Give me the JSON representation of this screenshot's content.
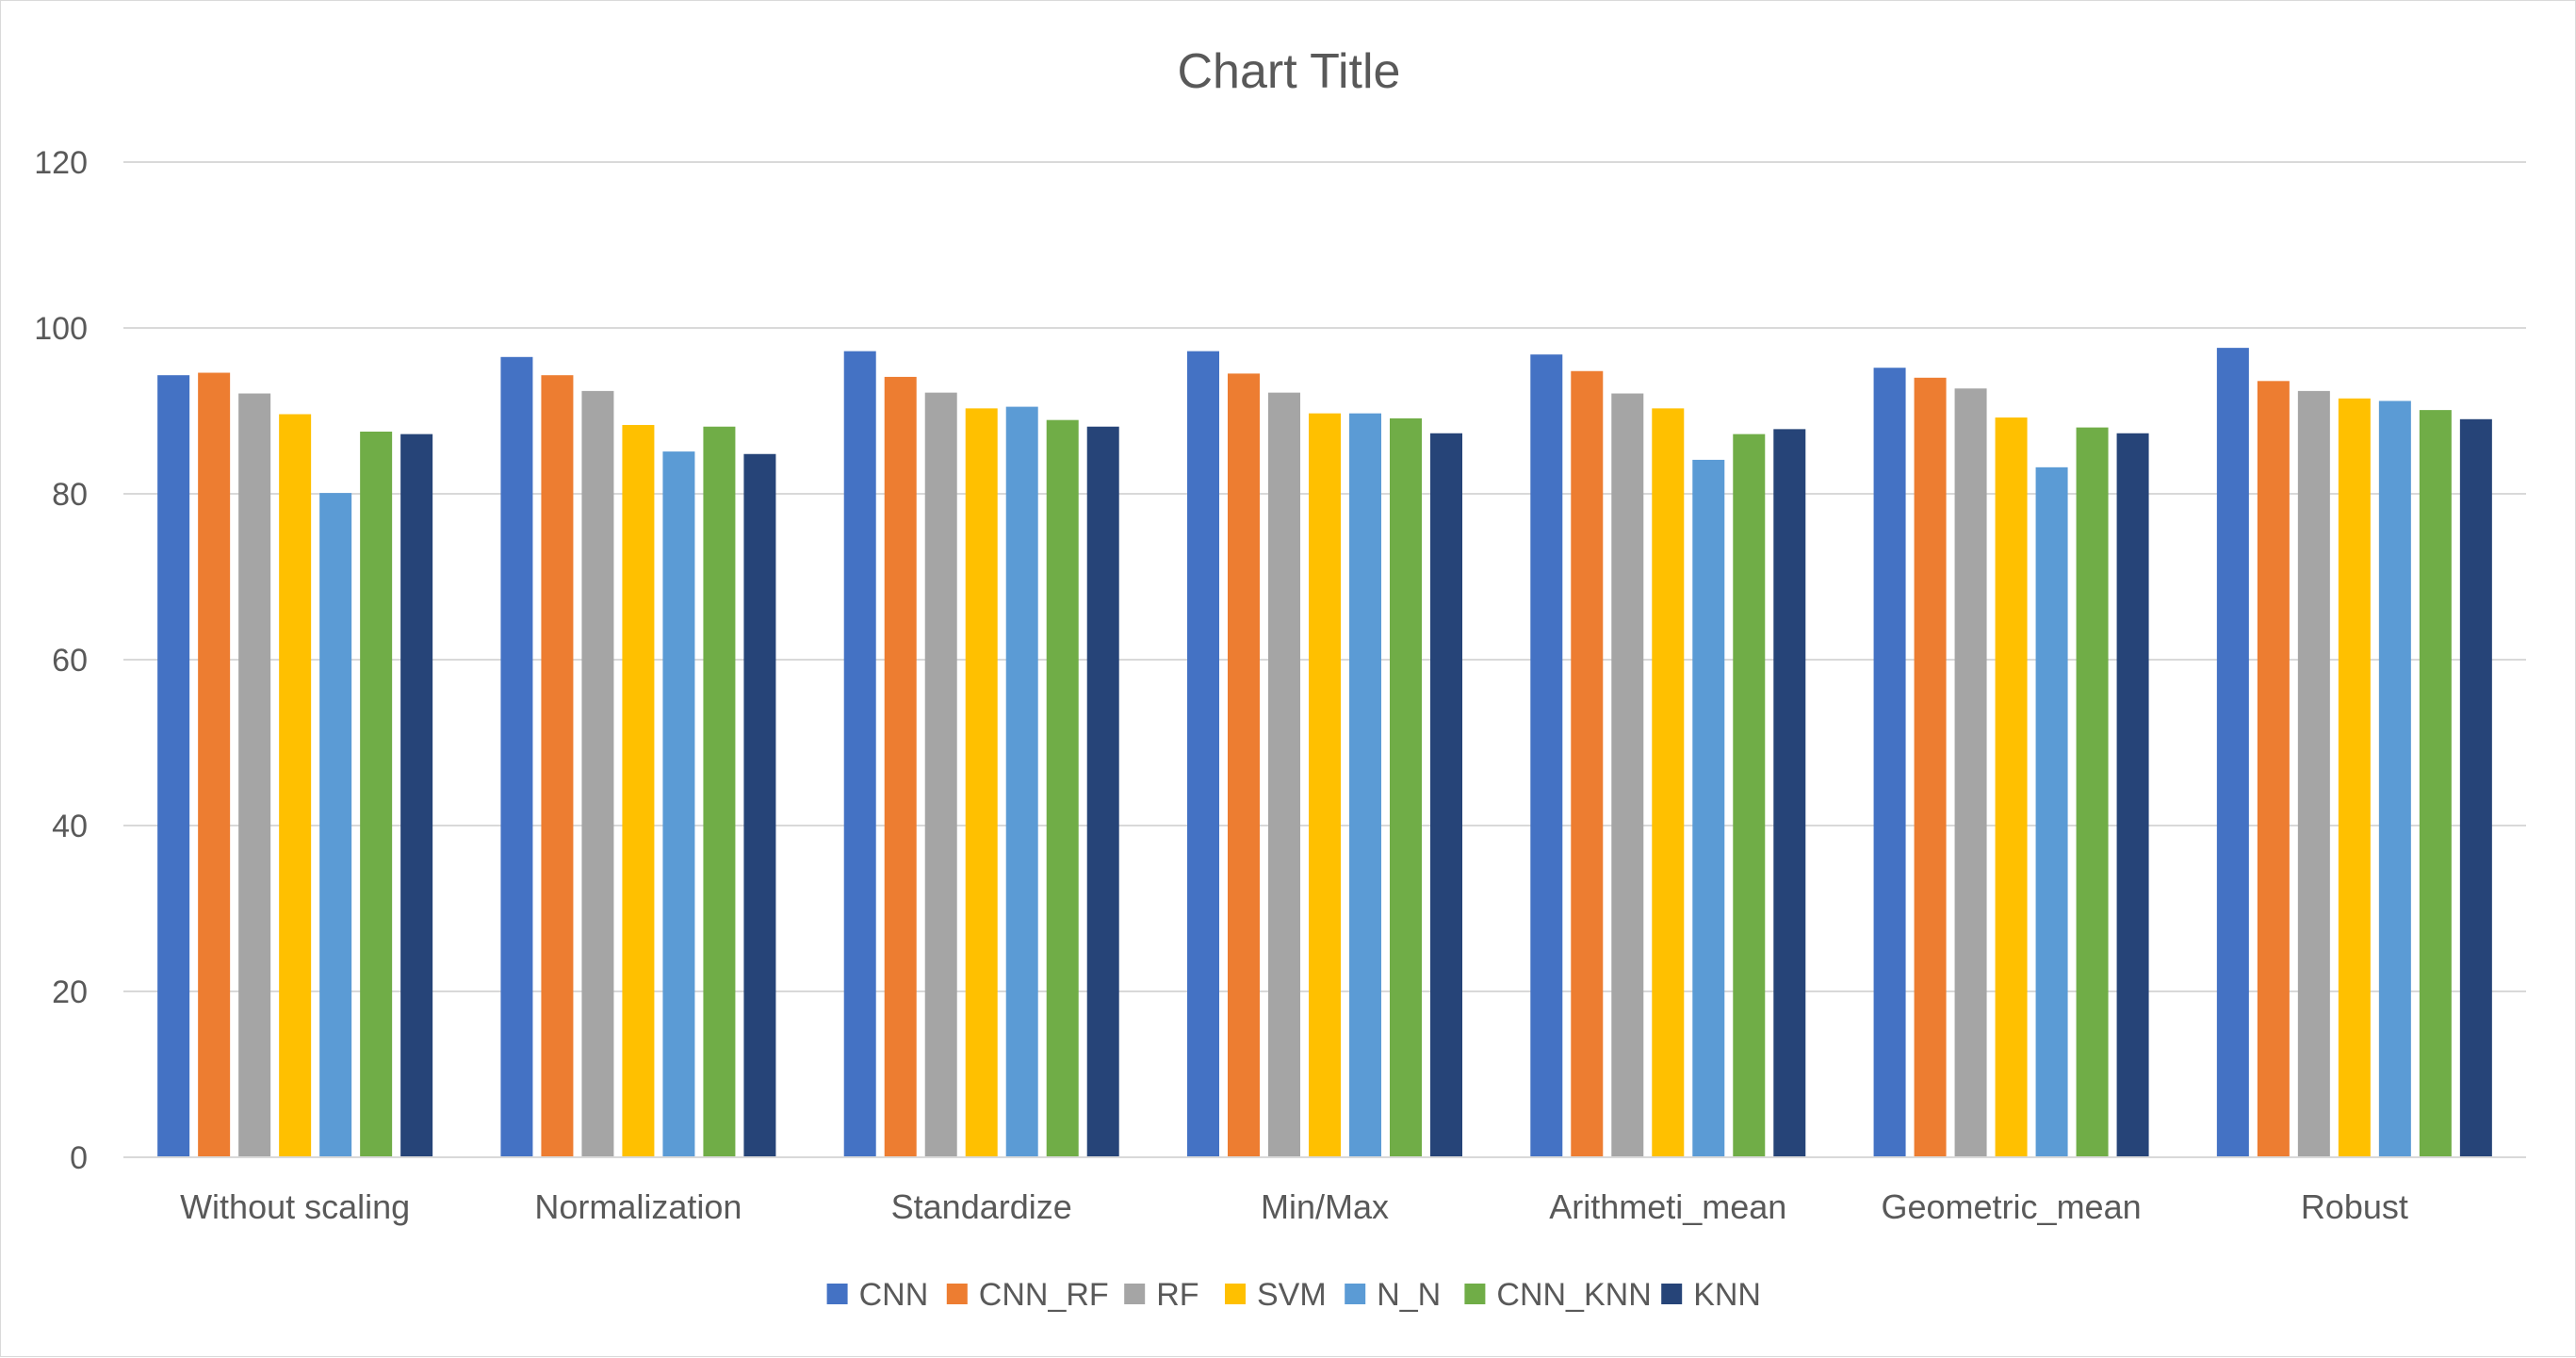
{
  "chart_data": {
    "type": "bar",
    "title": "Chart Title",
    "xlabel": "",
    "ylabel": "",
    "ylim": [
      0,
      120
    ],
    "yticks": [
      0,
      20,
      40,
      60,
      80,
      100,
      120
    ],
    "grid": true,
    "legend_position": "bottom",
    "categories": [
      "Without scaling",
      "Normalization",
      "Standardize",
      "Min/Max",
      "Arithmeti_mean",
      "Geometric_mean",
      "Robust"
    ],
    "series": [
      {
        "name": "CNN",
        "color": "#4472C4",
        "values": [
          94.3,
          96.5,
          97.2,
          97.2,
          96.8,
          95.2,
          97.6
        ]
      },
      {
        "name": "CNN_RF",
        "color": "#ED7D31",
        "values": [
          94.6,
          94.3,
          94.1,
          94.5,
          94.8,
          94.0,
          93.6
        ]
      },
      {
        "name": "RF",
        "color": "#A5A5A5",
        "values": [
          92.1,
          92.4,
          92.2,
          92.2,
          92.1,
          92.7,
          92.4
        ]
      },
      {
        "name": "SVM",
        "color": "#FFC000",
        "values": [
          89.6,
          88.3,
          90.3,
          89.7,
          90.3,
          89.2,
          91.5
        ]
      },
      {
        "name": "N_N",
        "color": "#5B9BD5",
        "values": [
          80.1,
          85.1,
          90.5,
          89.7,
          84.1,
          83.2,
          91.2
        ]
      },
      {
        "name": "CNN_KNN",
        "color": "#70AD47",
        "values": [
          87.5,
          88.1,
          88.9,
          89.1,
          87.2,
          88.0,
          90.1
        ]
      },
      {
        "name": "KNN",
        "color": "#264478",
        "values": [
          87.2,
          84.8,
          88.1,
          87.3,
          87.8,
          87.3,
          89.0
        ]
      }
    ]
  }
}
